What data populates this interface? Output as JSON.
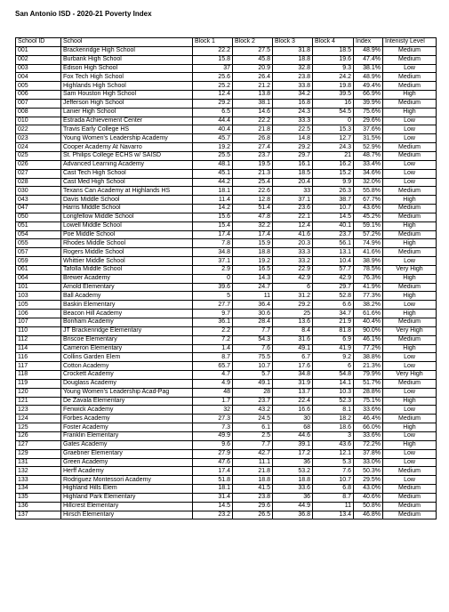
{
  "title": "San Antonio ISD - 2020-21 Poverty Index",
  "columns": [
    "School ID",
    "School",
    "Block 1",
    "Block 2",
    "Block 3",
    "Block 4",
    "Index",
    "Intenisty Level"
  ],
  "rows": [
    [
      "001",
      "Brackenridge High School",
      "22.2",
      "27.5",
      "31.8",
      "18.5",
      "48.9%",
      "Medium"
    ],
    [
      "002",
      "Burbank High School",
      "15.8",
      "45.8",
      "18.8",
      "19.6",
      "47.4%",
      "Medium"
    ],
    [
      "003",
      "Edison High School",
      "37",
      "20.9",
      "32.8",
      "9.3",
      "38.1%",
      "Low"
    ],
    [
      "004",
      "Fox Tech High School",
      "25.6",
      "26.4",
      "23.8",
      "24.2",
      "48.9%",
      "Medium"
    ],
    [
      "005",
      "Highlands High School",
      "25.2",
      "21.2",
      "33.8",
      "19.8",
      "49.4%",
      "Medium"
    ],
    [
      "006",
      "Sam Houston High School",
      "12.4",
      "13.8",
      "34.2",
      "39.5",
      "66.9%",
      "High"
    ],
    [
      "007",
      "Jefferson High School",
      "29.2",
      "38.1",
      "16.8",
      "16",
      "39.9%",
      "Medium"
    ],
    [
      "008",
      "Lanier High School",
      "6.5",
      "14.6",
      "24.3",
      "54.5",
      "75.6%",
      "High"
    ],
    [
      "010",
      "Estrada Achievement Center",
      "44.4",
      "22.2",
      "33.3",
      "0",
      "29.6%",
      "Low"
    ],
    [
      "022",
      "Travis Early College HS",
      "40.4",
      "21.8",
      "22.5",
      "15.3",
      "37.6%",
      "Low"
    ],
    [
      "023",
      "Young Women's Leadership Academy",
      "45.7",
      "26.8",
      "14.8",
      "12.7",
      "31.5%",
      "Low"
    ],
    [
      "024",
      "Cooper Academy At Navarro",
      "19.2",
      "27.4",
      "29.2",
      "24.3",
      "52.9%",
      "Medium"
    ],
    [
      "025",
      "St. Philips College ECHS w/ SAISD",
      "25.5",
      "23.7",
      "29.7",
      "21",
      "48.7%",
      "Medium"
    ],
    [
      "026",
      "Advanced Learning Academy",
      "48.1",
      "19.5",
      "16.1",
      "16.2",
      "33.4%",
      "Low"
    ],
    [
      "027",
      "Cast Tech High School",
      "45.1",
      "21.3",
      "18.5",
      "15.2",
      "34.6%",
      "Low"
    ],
    [
      "028",
      "Cast Med High School",
      "44.2",
      "25.4",
      "20.4",
      "9.9",
      "32.0%",
      "Low"
    ],
    [
      "030",
      "Texans Can Academy at Highlands HS",
      "18.1",
      "22.6",
      "33",
      "26.3",
      "55.8%",
      "Medium"
    ],
    [
      "043",
      "Davis Middle School",
      "11.4",
      "12.8",
      "37.1",
      "38.7",
      "67.7%",
      "High"
    ],
    [
      "047",
      "Harris Middle School",
      "14.2",
      "51.4",
      "23.6",
      "10.7",
      "43.6%",
      "Medium"
    ],
    [
      "050",
      "Longfellow Middle School",
      "15.6",
      "47.8",
      "22.1",
      "14.5",
      "45.2%",
      "Medium"
    ],
    [
      "051",
      "Lowell Middle School",
      "15.4",
      "32.2",
      "12.4",
      "40.1",
      "59.1%",
      "High"
    ],
    [
      "054",
      "Poe Middle School",
      "17.4",
      "17.4",
      "41.6",
      "23.7",
      "57.2%",
      "Medium"
    ],
    [
      "055",
      "Rhodes Middle School",
      "7.8",
      "15.9",
      "20.3",
      "56.1",
      "74.9%",
      "High"
    ],
    [
      "057",
      "Rogers Middle School",
      "34.8",
      "18.8",
      "33.3",
      "13.1",
      "41.6%",
      "Medium"
    ],
    [
      "059",
      "Whittier Middle School",
      "37.1",
      "19.2",
      "33.2",
      "10.4",
      "38.9%",
      "Low"
    ],
    [
      "061",
      "Tafolla Middle School",
      "2.9",
      "16.5",
      "22.9",
      "57.7",
      "78.5%",
      "Very High"
    ],
    [
      "064",
      "Brewer Academy",
      "0",
      "14.3",
      "42.9",
      "42.9",
      "76.3%",
      "High"
    ],
    [
      "101",
      "Arnold Elementary",
      "39.6",
      "24.7",
      "6",
      "29.7",
      "41.9%",
      "Medium"
    ],
    [
      "103",
      "Ball Academy",
      "5",
      "11",
      "31.2",
      "52.8",
      "77.3%",
      "High"
    ],
    [
      "105",
      "Baskin Elementary",
      "27.7",
      "36.4",
      "29.2",
      "6.6",
      "38.2%",
      "Low"
    ],
    [
      "106",
      "Beacon Hill Academy",
      "9.7",
      "30.6",
      "25",
      "34.7",
      "61.6%",
      "High"
    ],
    [
      "107",
      "Bonham Academy",
      "36.1",
      "28.4",
      "13.6",
      "21.9",
      "40.4%",
      "Medium"
    ],
    [
      "110",
      "JT Brackenridge Elementary",
      "2.2",
      "7.7",
      "8.4",
      "81.8",
      "90.0%",
      "Very High"
    ],
    [
      "112",
      "Briscoe Elementary",
      "7.2",
      "54.3",
      "31.6",
      "6.9",
      "46.1%",
      "Medium"
    ],
    [
      "114",
      "Cameron Elementary",
      "1.4",
      "7.6",
      "49.1",
      "41.9",
      "77.2%",
      "High"
    ],
    [
      "116",
      "Collins Garden Elem",
      "8.7",
      "75.5",
      "6.7",
      "9.2",
      "38.8%",
      "Low"
    ],
    [
      "117",
      "Cotton Academy",
      "65.7",
      "10.7",
      "17.6",
      "6",
      "21.3%",
      "Low"
    ],
    [
      "118",
      "Crockett Academy",
      "4.7",
      "5.7",
      "34.8",
      "54.8",
      "79.9%",
      "Very High"
    ],
    [
      "119",
      "Douglass Academy",
      "4.9",
      "49.1",
      "31.9",
      "14.1",
      "51.7%",
      "Medium"
    ],
    [
      "120",
      "Young Women's Leadership Acad-Pag",
      "48",
      "28",
      "13.7",
      "10.3",
      "28.8%",
      "Low"
    ],
    [
      "121",
      "De Zavala Elementary",
      "1.7",
      "23.7",
      "22.4",
      "52.3",
      "75.1%",
      "High"
    ],
    [
      "123",
      "Fenwick Academy",
      "32",
      "43.2",
      "16.6",
      "8.1",
      "33.6%",
      "Low"
    ],
    [
      "124",
      "Forbes Academy",
      "27.3",
      "24.5",
      "30",
      "18.2",
      "46.4%",
      "Medium"
    ],
    [
      "125",
      "Foster Academy",
      "7.3",
      "6.1",
      "68",
      "18.6",
      "66.0%",
      "High"
    ],
    [
      "126",
      "Franklin Elementary",
      "49.9",
      "2.5",
      "44.6",
      "3",
      "33.6%",
      "Low"
    ],
    [
      "127",
      "Gates Academy",
      "9.6",
      "7.7",
      "39.1",
      "43.6",
      "72.2%",
      "High"
    ],
    [
      "129",
      "Graebner Elementary",
      "27.9",
      "42.7",
      "17.2",
      "12.1",
      "37.8%",
      "Low"
    ],
    [
      "131",
      "Green Academy",
      "47.6",
      "11.1",
      "36",
      "5.3",
      "33.0%",
      "Low"
    ],
    [
      "132",
      "Herff Academy",
      "17.4",
      "21.8",
      "53.2",
      "7.6",
      "50.3%",
      "Medium"
    ],
    [
      "133",
      "Rodriguez Montessori Academy",
      "51.8",
      "18.8",
      "18.8",
      "10.7",
      "29.5%",
      "Low"
    ],
    [
      "134",
      "Highland Hills Elem",
      "18.1",
      "41.5",
      "33.6",
      "6.8",
      "43.0%",
      "Medium"
    ],
    [
      "135",
      "Highland Park Elementary",
      "31.4",
      "23.8",
      "36",
      "8.7",
      "40.6%",
      "Medium"
    ],
    [
      "136",
      "Hillcrest Elementary",
      "14.5",
      "29.6",
      "44.9",
      "11",
      "50.8%",
      "Medium"
    ],
    [
      "137",
      "Hirsch Elementary",
      "23.2",
      "26.5",
      "36.8",
      "13.4",
      "46.8%",
      "Medium"
    ]
  ]
}
